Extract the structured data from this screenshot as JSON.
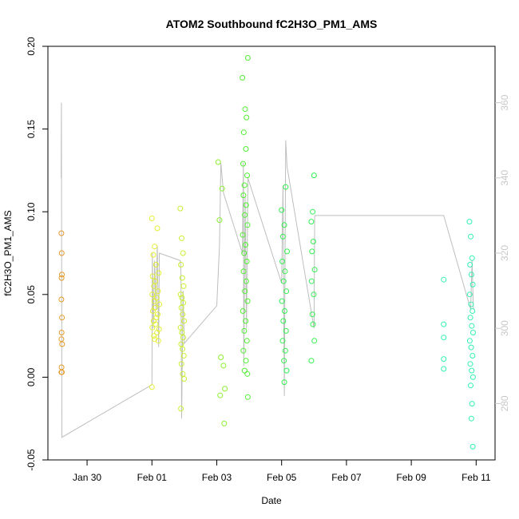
{
  "chart_data": {
    "type": "scatter",
    "title": "ATOM2 Southbound fC2H3O_PM1_AMS",
    "xlabel": "Date",
    "ylabel": "fC2H3O_PM1_AMS",
    "x_unit": "day",
    "xlim": [
      "2017-01-28T19:00",
      "2017-02-11T14:00"
    ],
    "ylim": [
      -0.05,
      0.2
    ],
    "y2lim": [
      265,
      375
    ],
    "x_ticks": [
      {
        "label": "Jan 30",
        "date": "2017-01-30"
      },
      {
        "label": "Feb 01",
        "date": "2017-02-01"
      },
      {
        "label": "Feb 03",
        "date": "2017-02-03"
      },
      {
        "label": "Feb 05",
        "date": "2017-02-05"
      },
      {
        "label": "Feb 07",
        "date": "2017-02-07"
      },
      {
        "label": "Feb 09",
        "date": "2017-02-09"
      },
      {
        "label": "Feb 11",
        "date": "2017-02-11"
      }
    ],
    "y_ticks": [
      "-0.05",
      "0.00",
      "0.05",
      "0.10",
      "0.15",
      "0.20"
    ],
    "y2_ticks": [
      "280",
      "300",
      "320",
      "340",
      "360"
    ],
    "grid": false,
    "legend": "none",
    "colors": {
      "g1": "#e69a28",
      "g2": "#e1f032",
      "g3": "#c8f032",
      "g4": "#8cf032",
      "g5": "#50f032",
      "g6": "#32f050",
      "g7": "#32f0b4",
      "line": "#bebebe",
      "y2_text": "#c8c8c8"
    },
    "series": [
      {
        "color_key": "g1",
        "points": [
          [
            "2017-01-29T05:00",
            0.087
          ],
          [
            "2017-01-29T05:15",
            0.075
          ],
          [
            "2017-01-29T05:20",
            0.062
          ],
          [
            "2017-01-29T05:05",
            0.06
          ],
          [
            "2017-01-29T05:00",
            0.047
          ],
          [
            "2017-01-29T05:25",
            0.036
          ],
          [
            "2017-01-29T05:10",
            0.027
          ],
          [
            "2017-01-29T05:00",
            0.023
          ],
          [
            "2017-01-29T05:30",
            0.02
          ],
          [
            "2017-01-29T05:05",
            0.006
          ],
          [
            "2017-01-29T05:00",
            0.003
          ],
          [
            "2017-01-29T05:20",
            0.003
          ]
        ]
      },
      {
        "color_key": "g2",
        "points": [
          [
            "2017-02-01T00:00",
            0.096
          ],
          [
            "2017-02-01T04:00",
            0.09
          ],
          [
            "2017-02-01T02:00",
            0.079
          ],
          [
            "2017-02-01T01:00",
            0.074
          ],
          [
            "2017-02-01T03:00",
            0.068
          ],
          [
            "2017-02-01T05:00",
            0.063
          ],
          [
            "2017-02-01T00:30",
            0.061
          ],
          [
            "2017-02-01T02:30",
            0.058
          ],
          [
            "2017-02-01T01:30",
            0.055
          ],
          [
            "2017-02-01T04:30",
            0.052
          ],
          [
            "2017-02-01T00:15",
            0.05
          ],
          [
            "2017-02-01T03:30",
            0.048
          ],
          [
            "2017-02-01T01:45",
            0.046
          ],
          [
            "2017-02-01T05:30",
            0.044
          ],
          [
            "2017-02-01T02:15",
            0.042
          ],
          [
            "2017-02-01T00:45",
            0.04
          ],
          [
            "2017-02-01T04:15",
            0.038
          ],
          [
            "2017-02-01T03:15",
            0.036
          ],
          [
            "2017-02-01T01:15",
            0.034
          ],
          [
            "2017-02-01T02:45",
            0.032
          ],
          [
            "2017-02-01T00:20",
            0.03
          ],
          [
            "2017-02-01T05:15",
            0.029
          ],
          [
            "2017-02-01T03:45",
            0.027
          ],
          [
            "2017-02-01T01:30",
            0.025
          ],
          [
            "2017-02-01T02:00",
            0.023
          ],
          [
            "2017-02-01T04:45",
            0.022
          ],
          [
            "2017-02-01T00:00",
            -0.006
          ]
        ]
      },
      {
        "color_key": "g3",
        "points": [
          [
            "2017-02-01T21:00",
            0.102
          ],
          [
            "2017-02-01T22:00",
            0.084
          ],
          [
            "2017-02-01T23:00",
            0.075
          ],
          [
            "2017-02-01T21:30",
            0.068
          ],
          [
            "2017-02-01T22:30",
            0.06
          ],
          [
            "2017-02-01T23:30",
            0.055
          ],
          [
            "2017-02-01T21:15",
            0.05
          ],
          [
            "2017-02-01T22:15",
            0.048
          ],
          [
            "2017-02-01T23:15",
            0.045
          ],
          [
            "2017-02-01T21:45",
            0.042
          ],
          [
            "2017-02-01T22:45",
            0.038
          ],
          [
            "2017-02-01T23:45",
            0.034
          ],
          [
            "2017-02-01T21:10",
            0.03
          ],
          [
            "2017-02-01T22:10",
            0.027
          ],
          [
            "2017-02-01T23:10",
            0.024
          ],
          [
            "2017-02-01T21:40",
            0.02
          ],
          [
            "2017-02-01T22:40",
            0.017
          ],
          [
            "2017-02-01T23:40",
            0.013
          ],
          [
            "2017-02-01T21:50",
            0.008
          ],
          [
            "2017-02-01T22:50",
            0.002
          ],
          [
            "2017-02-01T23:50",
            -0.001
          ],
          [
            "2017-02-01T21:30",
            -0.019
          ]
        ]
      },
      {
        "color_key": "g4",
        "points": [
          [
            "2017-02-03T01:00",
            0.13
          ],
          [
            "2017-02-03T04:00",
            0.114
          ],
          [
            "2017-02-03T02:00",
            0.095
          ],
          [
            "2017-02-03T03:00",
            0.012
          ],
          [
            "2017-02-03T05:00",
            0.007
          ],
          [
            "2017-02-03T06:00",
            -0.007
          ],
          [
            "2017-02-03T02:30",
            -0.011
          ],
          [
            "2017-02-03T05:30",
            -0.028
          ]
        ]
      },
      {
        "color_key": "g5",
        "points": [
          [
            "2017-02-03T19:00",
            0.181
          ],
          [
            "2017-02-03T21:00",
            0.162
          ],
          [
            "2017-02-03T23:00",
            0.193
          ],
          [
            "2017-02-03T22:00",
            0.157
          ],
          [
            "2017-02-03T20:00",
            0.148
          ],
          [
            "2017-02-03T21:30",
            0.138
          ],
          [
            "2017-02-03T19:30",
            0.129
          ],
          [
            "2017-02-03T22:30",
            0.122
          ],
          [
            "2017-02-03T20:30",
            0.116
          ],
          [
            "2017-02-03T19:45",
            0.11
          ],
          [
            "2017-02-03T21:45",
            0.104
          ],
          [
            "2017-02-03T20:45",
            0.098
          ],
          [
            "2017-02-03T22:45",
            0.092
          ],
          [
            "2017-02-03T19:15",
            0.086
          ],
          [
            "2017-02-03T21:15",
            0.08
          ],
          [
            "2017-02-03T20:15",
            0.075
          ],
          [
            "2017-02-03T22:15",
            0.07
          ],
          [
            "2017-02-03T19:50",
            0.064
          ],
          [
            "2017-02-03T21:50",
            0.058
          ],
          [
            "2017-02-03T20:50",
            0.052
          ],
          [
            "2017-02-03T22:50",
            0.046
          ],
          [
            "2017-02-03T19:20",
            0.04
          ],
          [
            "2017-02-03T21:20",
            0.034
          ],
          [
            "2017-02-03T20:20",
            0.028
          ],
          [
            "2017-02-03T22:20",
            0.022
          ],
          [
            "2017-02-03T19:40",
            0.016
          ],
          [
            "2017-02-03T21:40",
            0.01
          ],
          [
            "2017-02-03T20:40",
            0.004
          ],
          [
            "2017-02-03T22:40",
            0.002
          ],
          [
            "2017-02-03T23:00",
            -0.012
          ]
        ]
      },
      {
        "color_key": "g6",
        "points": [
          [
            "2017-02-05T00:00",
            0.101
          ],
          [
            "2017-02-05T03:00",
            0.115
          ],
          [
            "2017-02-05T02:00",
            0.092
          ],
          [
            "2017-02-05T01:00",
            0.085
          ],
          [
            "2017-02-05T04:00",
            0.076
          ],
          [
            "2017-02-05T00:30",
            0.07
          ],
          [
            "2017-02-05T02:30",
            0.064
          ],
          [
            "2017-02-05T01:30",
            0.058
          ],
          [
            "2017-02-05T03:30",
            0.052
          ],
          [
            "2017-02-05T00:15",
            0.046
          ],
          [
            "2017-02-05T02:15",
            0.04
          ],
          [
            "2017-02-05T01:15",
            0.034
          ],
          [
            "2017-02-05T03:15",
            0.028
          ],
          [
            "2017-02-05T00:45",
            0.022
          ],
          [
            "2017-02-05T02:45",
            0.016
          ],
          [
            "2017-02-05T01:45",
            0.01
          ],
          [
            "2017-02-05T03:45",
            0.004
          ],
          [
            "2017-02-05T02:00",
            -0.003
          ],
          [
            "2017-02-06T00:00",
            0.122
          ],
          [
            "2017-02-05T23:00",
            0.1
          ],
          [
            "2017-02-05T22:00",
            0.094
          ],
          [
            "2017-02-05T23:30",
            0.082
          ],
          [
            "2017-02-05T22:30",
            0.076
          ],
          [
            "2017-02-06T00:30",
            0.065
          ],
          [
            "2017-02-05T22:15",
            0.058
          ],
          [
            "2017-02-05T23:45",
            0.05
          ],
          [
            "2017-02-05T22:45",
            0.038
          ],
          [
            "2017-02-05T23:15",
            0.032
          ],
          [
            "2017-02-06T00:15",
            0.022
          ],
          [
            "2017-02-05T22:00",
            0.01
          ]
        ]
      },
      {
        "color_key": "g7",
        "points": [
          [
            "2017-02-10T00:00",
            0.059
          ],
          [
            "2017-02-10T00:00",
            0.032
          ],
          [
            "2017-02-10T00:00",
            0.024
          ],
          [
            "2017-02-10T00:00",
            0.011
          ],
          [
            "2017-02-10T00:00",
            0.005
          ],
          [
            "2017-02-10T19:00",
            0.094
          ],
          [
            "2017-02-10T20:00",
            0.085
          ],
          [
            "2017-02-10T21:00",
            0.072
          ],
          [
            "2017-02-10T19:30",
            0.068
          ],
          [
            "2017-02-10T20:30",
            0.062
          ],
          [
            "2017-02-10T21:30",
            0.056
          ],
          [
            "2017-02-10T19:15",
            0.05
          ],
          [
            "2017-02-10T20:15",
            0.044
          ],
          [
            "2017-02-10T21:15",
            0.04
          ],
          [
            "2017-02-10T19:45",
            0.036
          ],
          [
            "2017-02-10T20:45",
            0.031
          ],
          [
            "2017-02-10T21:45",
            0.027
          ],
          [
            "2017-02-10T19:20",
            0.022
          ],
          [
            "2017-02-10T20:20",
            0.018
          ],
          [
            "2017-02-10T21:20",
            0.013
          ],
          [
            "2017-02-10T19:40",
            0.008
          ],
          [
            "2017-02-10T20:40",
            0.004
          ],
          [
            "2017-02-10T21:40",
            0.0
          ],
          [
            "2017-02-10T20:00",
            -0.005
          ],
          [
            "2017-02-10T21:00",
            -0.016
          ],
          [
            "2017-02-10T20:30",
            -0.025
          ],
          [
            "2017-02-10T21:30",
            -0.042
          ]
        ]
      }
    ],
    "line_series": {
      "axis": "right",
      "color_key": "line",
      "points": [
        [
          "2017-01-29T04:50",
          340
        ],
        [
          "2017-01-29T05:00",
          360
        ],
        [
          "2017-01-29T05:10",
          320
        ],
        [
          "2017-01-29T05:20",
          271
        ],
        [
          "2017-02-01T00:00",
          285
        ],
        [
          "2017-02-01T00:20",
          320
        ],
        [
          "2017-02-01T01:00",
          300
        ],
        [
          "2017-02-01T02:00",
          318
        ],
        [
          "2017-02-01T03:00",
          305
        ],
        [
          "2017-02-01T04:00",
          322
        ],
        [
          "2017-02-01T05:00",
          295
        ],
        [
          "2017-02-01T05:30",
          320
        ],
        [
          "2017-02-01T21:00",
          318
        ],
        [
          "2017-02-01T21:30",
          315
        ],
        [
          "2017-02-01T22:00",
          276
        ],
        [
          "2017-02-01T23:00",
          310
        ],
        [
          "2017-02-01T23:50",
          298
        ],
        [
          "2017-02-01T23:59",
          296
        ],
        [
          "2017-02-03T00:00",
          306
        ],
        [
          "2017-02-03T02:00",
          322
        ],
        [
          "2017-02-03T03:00",
          344
        ],
        [
          "2017-02-03T05:00",
          336
        ],
        [
          "2017-02-03T19:00",
          320
        ],
        [
          "2017-02-03T19:40",
          344
        ],
        [
          "2017-02-03T20:00",
          290
        ],
        [
          "2017-02-03T21:00",
          335
        ],
        [
          "2017-02-03T22:00",
          300
        ],
        [
          "2017-02-03T23:00",
          340
        ],
        [
          "2017-02-05T00:00",
          312
        ],
        [
          "2017-02-05T01:00",
          338
        ],
        [
          "2017-02-05T02:00",
          282
        ],
        [
          "2017-02-05T03:00",
          350
        ],
        [
          "2017-02-05T04:00",
          343
        ],
        [
          "2017-02-06T00:00",
          300
        ],
        [
          "2017-02-06T00:30",
          330
        ],
        [
          "2017-02-10T00:00",
          330
        ],
        [
          "2017-02-10T20:00",
          305
        ],
        [
          "2017-02-10T21:00",
          318
        ],
        [
          "2017-02-10T22:00",
          305
        ]
      ]
    }
  }
}
